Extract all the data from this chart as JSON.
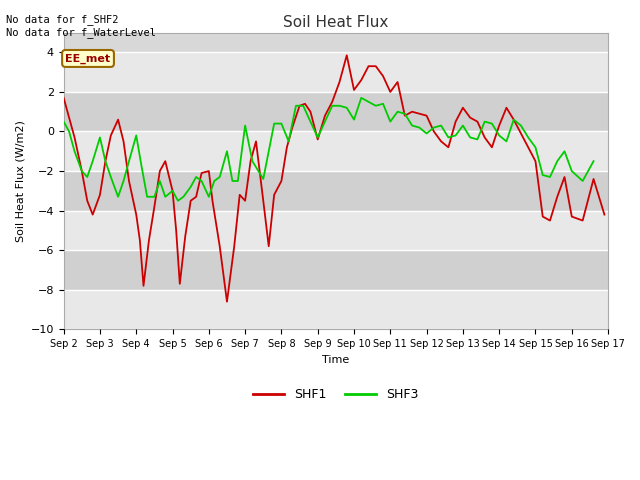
{
  "title": "Soil Heat Flux",
  "xlabel": "Time",
  "ylabel": "Soil Heat Flux (W/m2)",
  "ylim": [
    -10,
    5
  ],
  "yticks": [
    -10,
    -8,
    -6,
    -4,
    -2,
    0,
    2,
    4
  ],
  "xlim_start": 2,
  "xlim_end": 17,
  "xtick_labels": [
    "Sep 2",
    "Sep 3",
    "Sep 4",
    "Sep 5",
    "Sep 6",
    "Sep 7",
    "Sep 8",
    "Sep 9",
    "Sep 10",
    "Sep 11",
    "Sep 12",
    "Sep 13",
    "Sep 14",
    "Sep 15",
    "Sep 16",
    "Sep 17"
  ],
  "shf1_color": "#cc0000",
  "shf3_color": "#00cc00",
  "annotation_text": "No data for f_SHF2\nNo data for f_WaterLevel",
  "box_label": "EE_met",
  "box_facecolor": "#ffffcc",
  "box_edgecolor": "#996600",
  "box_text_color": "#990000",
  "background_color": "#d8d8d8",
  "band_light": "#e8e8e8",
  "band_dark": "#d0d0d0",
  "shf1_x": [
    2.0,
    2.15,
    2.3,
    2.5,
    2.65,
    2.8,
    3.0,
    3.15,
    3.3,
    3.5,
    3.65,
    3.8,
    4.0,
    4.1,
    4.2,
    4.35,
    4.5,
    4.65,
    4.8,
    5.0,
    5.1,
    5.2,
    5.35,
    5.5,
    5.65,
    5.8,
    6.0,
    6.1,
    6.3,
    6.5,
    6.7,
    6.85,
    7.0,
    7.15,
    7.3,
    7.5,
    7.65,
    7.8,
    8.0,
    8.15,
    8.3,
    8.5,
    8.65,
    8.8,
    9.0,
    9.2,
    9.4,
    9.6,
    9.8,
    10.0,
    10.2,
    10.4,
    10.6,
    10.8,
    11.0,
    11.2,
    11.4,
    11.6,
    11.8,
    12.0,
    12.2,
    12.4,
    12.6,
    12.8,
    13.0,
    13.2,
    13.4,
    13.6,
    13.8,
    14.0,
    14.2,
    14.4,
    14.6,
    14.8,
    15.0,
    15.2,
    15.4,
    15.6,
    15.8,
    16.0,
    16.3,
    16.6,
    16.9
  ],
  "shf1_y": [
    1.7,
    0.7,
    -0.3,
    -2.0,
    -3.5,
    -4.2,
    -3.2,
    -1.5,
    -0.2,
    0.6,
    -0.5,
    -2.5,
    -4.2,
    -5.5,
    -7.8,
    -5.5,
    -3.8,
    -2.0,
    -1.5,
    -3.0,
    -5.0,
    -7.7,
    -5.3,
    -3.5,
    -3.3,
    -2.1,
    -2.0,
    -3.5,
    -5.8,
    -8.6,
    -5.8,
    -3.2,
    -3.5,
    -1.5,
    -0.5,
    -3.5,
    -5.8,
    -3.2,
    -2.5,
    -0.8,
    0.2,
    1.3,
    1.4,
    1.0,
    -0.4,
    0.8,
    1.5,
    2.5,
    3.85,
    2.1,
    2.6,
    3.3,
    3.3,
    2.8,
    2.0,
    2.5,
    0.8,
    1.0,
    0.9,
    0.8,
    0.0,
    -0.5,
    -0.8,
    0.5,
    1.2,
    0.7,
    0.5,
    -0.3,
    -0.8,
    0.3,
    1.2,
    0.6,
    -0.1,
    -0.8,
    -1.5,
    -4.3,
    -4.5,
    -3.3,
    -2.3,
    -4.3,
    -4.5,
    -2.4,
    -4.2
  ],
  "shf3_x": [
    2.0,
    2.15,
    2.3,
    2.5,
    2.65,
    2.8,
    3.0,
    3.15,
    3.3,
    3.5,
    3.65,
    3.8,
    4.0,
    4.15,
    4.3,
    4.5,
    4.65,
    4.8,
    5.0,
    5.15,
    5.3,
    5.5,
    5.65,
    5.8,
    6.0,
    6.15,
    6.3,
    6.5,
    6.65,
    6.8,
    7.0,
    7.2,
    7.5,
    7.8,
    8.0,
    8.2,
    8.4,
    8.6,
    8.8,
    9.0,
    9.2,
    9.4,
    9.6,
    9.8,
    10.0,
    10.2,
    10.4,
    10.6,
    10.8,
    11.0,
    11.2,
    11.4,
    11.6,
    11.8,
    12.0,
    12.2,
    12.4,
    12.6,
    12.8,
    13.0,
    13.2,
    13.4,
    13.6,
    13.8,
    14.0,
    14.2,
    14.4,
    14.6,
    14.8,
    15.0,
    15.2,
    15.4,
    15.6,
    15.8,
    16.0,
    16.3,
    16.6
  ],
  "shf3_y": [
    0.5,
    0.0,
    -1.0,
    -2.0,
    -2.3,
    -1.5,
    -0.3,
    -1.5,
    -2.3,
    -3.3,
    -2.5,
    -1.5,
    -0.2,
    -1.8,
    -3.3,
    -3.3,
    -2.5,
    -3.3,
    -3.0,
    -3.5,
    -3.3,
    -2.8,
    -2.3,
    -2.5,
    -3.3,
    -2.5,
    -2.3,
    -1.0,
    -2.5,
    -2.5,
    0.3,
    -1.5,
    -2.4,
    0.4,
    0.4,
    -0.5,
    1.3,
    1.3,
    0.5,
    -0.3,
    0.5,
    1.3,
    1.3,
    1.2,
    0.6,
    1.7,
    1.5,
    1.3,
    1.4,
    0.5,
    1.0,
    0.9,
    0.3,
    0.2,
    -0.1,
    0.2,
    0.3,
    -0.3,
    -0.2,
    0.3,
    -0.3,
    -0.4,
    0.5,
    0.4,
    -0.2,
    -0.5,
    0.6,
    0.3,
    -0.3,
    -0.8,
    -2.2,
    -2.3,
    -1.5,
    -1.0,
    -2.0,
    -2.5,
    -1.5
  ]
}
